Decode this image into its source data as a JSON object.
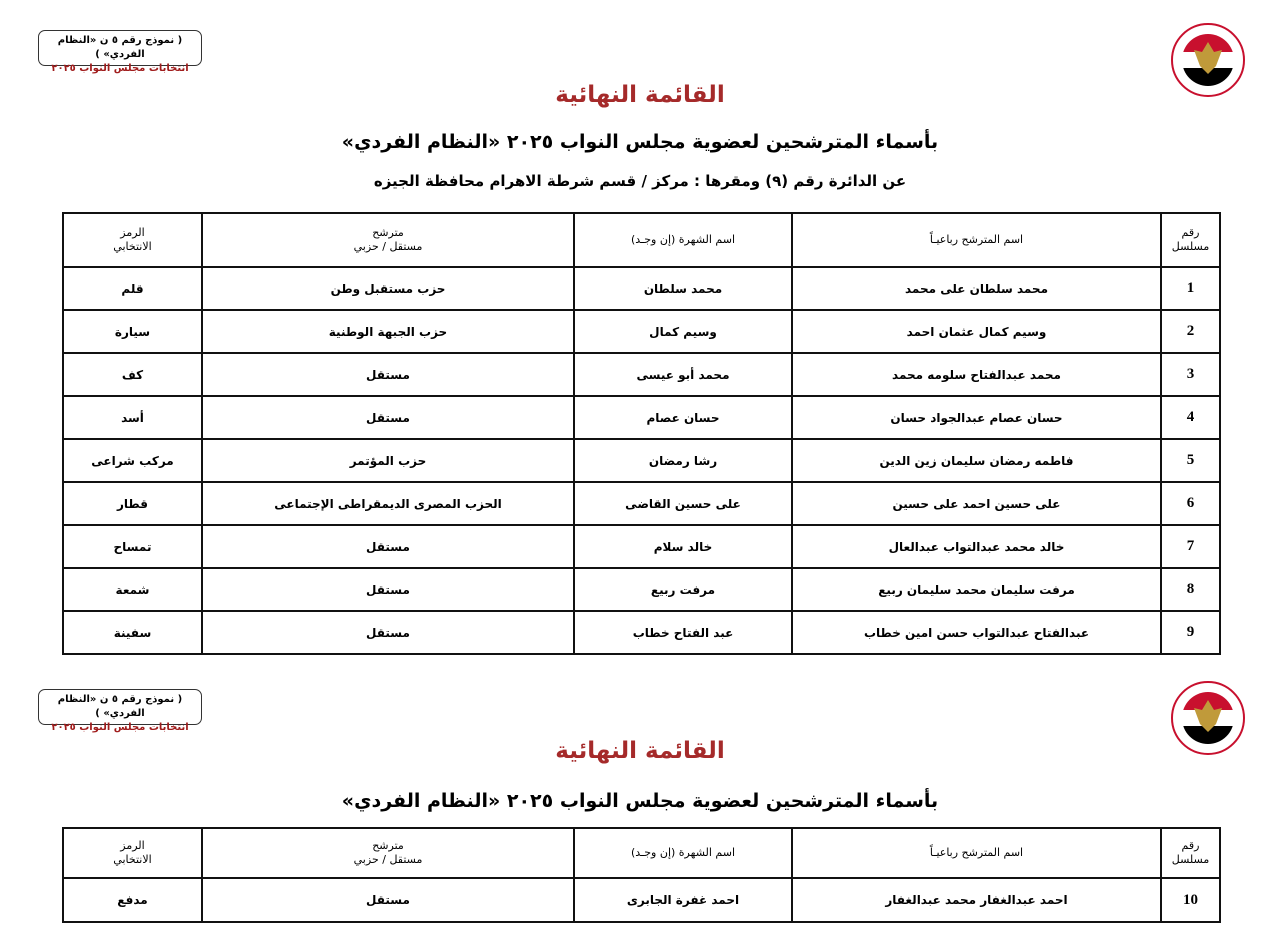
{
  "form_box": {
    "line1": "( نموذج رقم ٥ ن «النظام الفردي» )",
    "line2": "انتخابات مجلس النواب ٢٠٢٥"
  },
  "logo": {
    "text_ar": "الهيئة الوطنية للانتخابات",
    "text_en": "National Election Authority - Egypt",
    "colors": {
      "red": "#c8102e",
      "black": "#000000",
      "gold": "#c09a3a"
    }
  },
  "title": "القائمة النهائية",
  "subtitle": "بأسماء المترشحين لعضوية مجلس النواب ٢٠٢٥ «النظام الفردي»",
  "district_line": "عن الدائرة رقم  (٩)    ومقرها : مركز / قسم شرطة  الاهرام    محافظة  الجيزه",
  "accent_color": "#a52a2a",
  "table": {
    "headers": {
      "serial": [
        "رقم",
        "مسلسل"
      ],
      "full_name": "اسم المترشح رباعيـاً",
      "nickname": "اسم الشهرة (إن وجـد)",
      "affiliation": [
        "مترشح",
        "مستقل / حزبي"
      ],
      "symbol": [
        "الرمز",
        "الانتخابي"
      ]
    },
    "rows": [
      {
        "serial": "1",
        "full_name": "محمد سلطان على محمد",
        "nickname": "محمد سلطان",
        "affiliation": "حزب مستقبل وطن",
        "symbol": "قلم"
      },
      {
        "serial": "2",
        "full_name": "وسيم كمال عثمان احمد",
        "nickname": "وسيم كمال",
        "affiliation": "حزب الجبهة الوطنية",
        "symbol": "سيارة"
      },
      {
        "serial": "3",
        "full_name": "محمد عبدالفتاح سلومه محمد",
        "nickname": "محمد أبو عيسى",
        "affiliation": "مستقل",
        "symbol": "كف"
      },
      {
        "serial": "4",
        "full_name": "حسان عصام عبدالجواد حسان",
        "nickname": "حسان عصام",
        "affiliation": "مستقل",
        "symbol": "أسد"
      },
      {
        "serial": "5",
        "full_name": "فاطمه رمضان سليمان زين الدين",
        "nickname": "رشا رمضان",
        "affiliation": "حزب المؤتمر",
        "symbol": "مركب شراعى"
      },
      {
        "serial": "6",
        "full_name": "على حسين احمد على حسين",
        "nickname": "على حسين القاضى",
        "affiliation": "الحزب المصرى الديمقراطى الإجتماعى",
        "symbol": "قطار"
      },
      {
        "serial": "7",
        "full_name": "خالد محمد عبدالتواب عبدالعال",
        "nickname": "خالد سلام",
        "affiliation": "مستقل",
        "symbol": "تمساح"
      },
      {
        "serial": "8",
        "full_name": "مرفت سليمان محمد سليمان ربيع",
        "nickname": "مرفت ربيع",
        "affiliation": "مستقل",
        "symbol": "شمعة"
      },
      {
        "serial": "9",
        "full_name": "عبدالفتاح عبدالتواب حسن امين خطاب",
        "nickname": "عبد الفتاح خطاب",
        "affiliation": "مستقل",
        "symbol": "سفينة"
      }
    ],
    "rows_page2": [
      {
        "serial": "10",
        "full_name": "احمد عبدالغفار محمد عبدالغفار",
        "nickname": "احمد غفرة الجابرى",
        "affiliation": "مستقل",
        "symbol": "مدفع"
      }
    ]
  }
}
